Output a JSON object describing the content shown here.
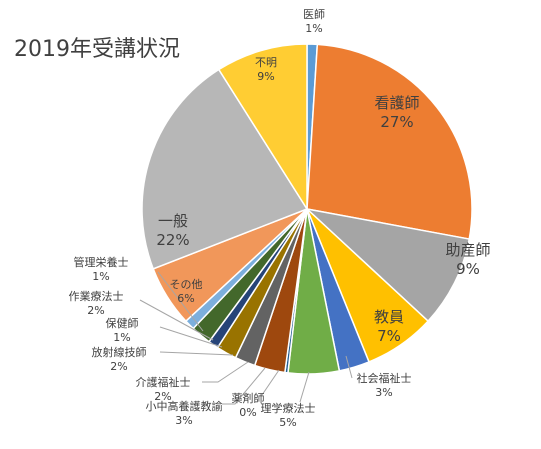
{
  "chart_data": {
    "type": "pie",
    "title": "2019年受講状況",
    "slices": [
      {
        "label": "医師",
        "value": 1,
        "value_label": "1%",
        "color": "#5B9BD5"
      },
      {
        "label": "看護師",
        "value": 27,
        "value_label": "27%",
        "color": "#ED7D31"
      },
      {
        "label": "助産師",
        "value": 9,
        "value_label": "9%",
        "color": "#A5A5A5"
      },
      {
        "label": "教員",
        "value": 7,
        "value_label": "7%",
        "color": "#FFC000"
      },
      {
        "label": "社会福祉士",
        "value": 3,
        "value_label": "3%",
        "color": "#4472C4"
      },
      {
        "label": "理学療法士",
        "value": 5,
        "value_label": "5%",
        "color": "#70AD47"
      },
      {
        "label": "薬剤師",
        "value": 0.3,
        "value_label": "0%",
        "color": "#255E91"
      },
      {
        "label": "小中高養護教諭",
        "value": 3,
        "value_label": "3%",
        "color": "#9E480E"
      },
      {
        "label": "介護福祉士",
        "value": 2,
        "value_label": "2%",
        "color": "#636363"
      },
      {
        "label": "放射線技師",
        "value": 2,
        "value_label": "2%",
        "color": "#997300"
      },
      {
        "label": "保健師",
        "value": 1,
        "value_label": "1%",
        "color": "#264478"
      },
      {
        "label": "作業療法士",
        "value": 2,
        "value_label": "2%",
        "color": "#43682B"
      },
      {
        "label": "管理栄養士",
        "value": 1,
        "value_label": "1%",
        "color": "#7CAFDD"
      },
      {
        "label": "その他",
        "value": 6,
        "value_label": "6%",
        "color": "#F1975A"
      },
      {
        "label": "一般",
        "value": 22,
        "value_label": "22%",
        "color": "#B7B7B7"
      },
      {
        "label": "不明",
        "value": 9,
        "value_label": "9%",
        "color": "#FFCD33"
      }
    ],
    "legend": "none"
  }
}
